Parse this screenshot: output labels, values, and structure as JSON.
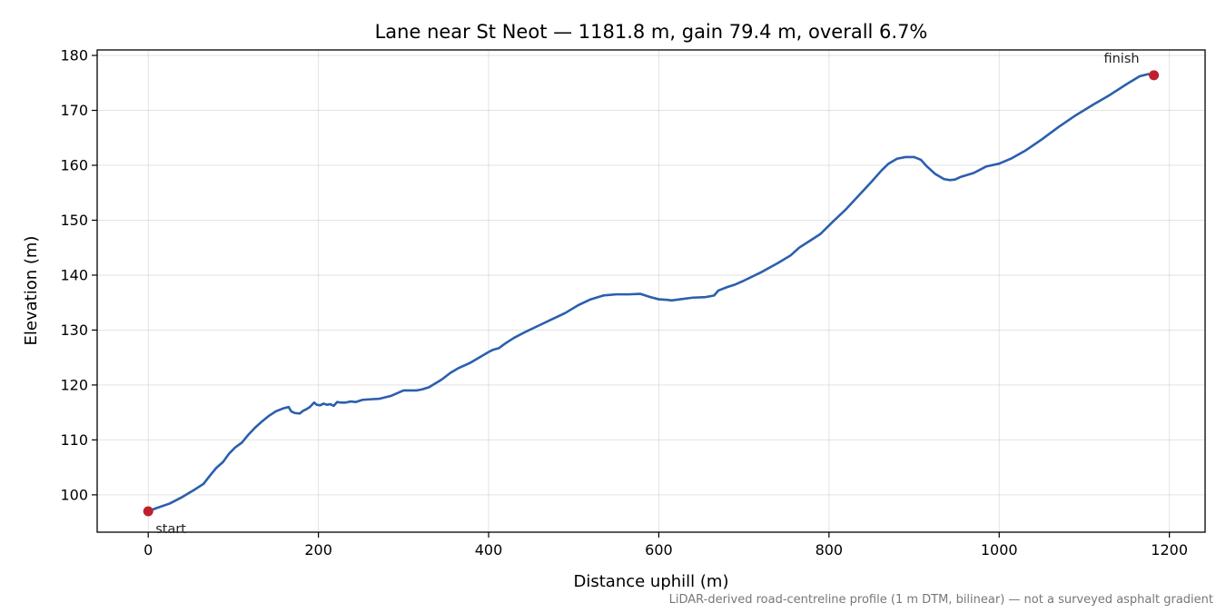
{
  "chart_data": {
    "type": "line",
    "title": "Lane near St Neot — 1181.8 m, gain 79.4 m, overall 6.7%",
    "xlabel": "Distance uphill (m)",
    "ylabel": "Elevation (m)",
    "xlim": [
      -60,
      1242
    ],
    "ylim": [
      93.2,
      181.0
    ],
    "xticks": [
      0,
      200,
      400,
      600,
      800,
      1000,
      1200
    ],
    "yticks": [
      100,
      110,
      120,
      130,
      140,
      150,
      160,
      170,
      180
    ],
    "grid": true,
    "footnote": "LiDAR-derived road-centreline profile (1 m DTM, bilinear) — not a surveyed asphalt gradient",
    "colors": {
      "line": "#2b5fad",
      "marker": "#c0202e"
    },
    "series": [
      {
        "x": [
          0,
          10,
          25,
          40,
          55,
          65,
          72,
          80,
          88,
          95,
          102,
          110,
          118,
          126,
          134,
          142,
          150,
          158,
          165,
          168,
          172,
          178,
          182,
          186,
          190,
          195,
          198,
          202,
          206,
          210,
          214,
          218,
          222,
          226,
          232,
          238,
          244,
          252,
          262,
          272,
          285,
          300,
          315,
          322,
          330,
          345,
          355,
          365,
          378,
          390,
          400,
          405,
          412,
          420,
          430,
          445,
          460,
          475,
          490,
          505,
          520,
          535,
          550,
          565,
          578,
          590,
          600,
          610,
          615,
          625,
          640,
          655,
          665,
          670,
          680,
          690,
          700,
          720,
          740,
          755,
          765,
          778,
          790,
          805,
          820,
          835,
          850,
          862,
          870,
          880,
          890,
          900,
          908,
          915,
          925,
          935,
          942,
          948,
          955,
          970,
          985,
          1000,
          1015,
          1030,
          1050,
          1070,
          1090,
          1110,
          1130,
          1150,
          1165,
          1175,
          1181.8
        ],
        "y": [
          97.0,
          97.6,
          98.4,
          99.6,
          101.0,
          102.0,
          103.4,
          104.9,
          106.0,
          107.5,
          108.6,
          109.5,
          111.0,
          112.3,
          113.4,
          114.4,
          115.2,
          115.7,
          116.0,
          115.2,
          114.9,
          114.8,
          115.3,
          115.6,
          116.0,
          116.8,
          116.4,
          116.3,
          116.6,
          116.4,
          116.5,
          116.2,
          116.9,
          116.8,
          116.8,
          117.0,
          116.9,
          117.3,
          117.4,
          117.5,
          118.0,
          119.0,
          119.0,
          119.2,
          119.6,
          121.0,
          122.2,
          123.1,
          124.0,
          125.1,
          126.0,
          126.4,
          126.7,
          127.6,
          128.6,
          129.8,
          130.9,
          132.0,
          133.1,
          134.5,
          135.6,
          136.3,
          136.5,
          136.5,
          136.6,
          136.0,
          135.6,
          135.5,
          135.4,
          135.6,
          135.9,
          136.0,
          136.3,
          137.2,
          137.8,
          138.3,
          139.0,
          140.5,
          142.2,
          143.6,
          145.0,
          146.3,
          147.5,
          149.8,
          152.0,
          154.5,
          157.0,
          159.1,
          160.3,
          161.2,
          161.5,
          161.5,
          161.0,
          159.8,
          158.4,
          157.5,
          157.3,
          157.4,
          157.9,
          158.6,
          159.8,
          160.3,
          161.3,
          162.6,
          164.7,
          167.0,
          169.1,
          171.0,
          172.8,
          174.8,
          176.2,
          176.6,
          176.4
        ]
      }
    ],
    "annotations": [
      {
        "text": "start",
        "x": 0,
        "y": 97.0
      },
      {
        "text": "finish",
        "x": 1181.8,
        "y": 176.4
      }
    ]
  }
}
